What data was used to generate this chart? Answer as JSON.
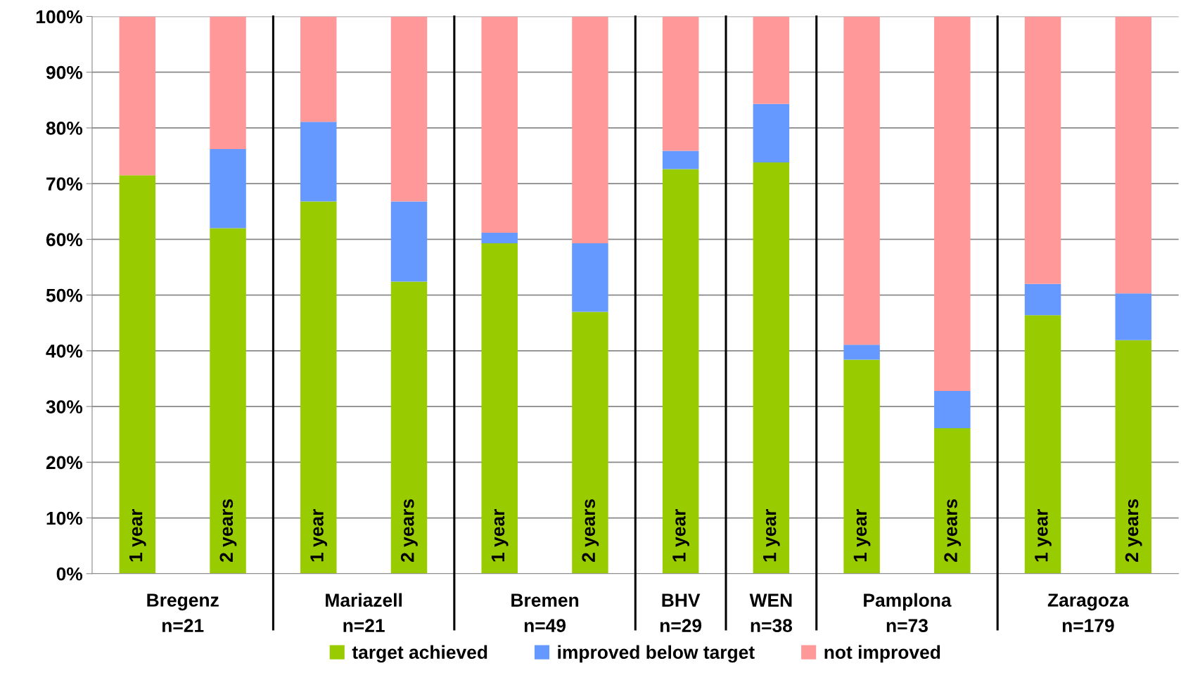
{
  "chart_data": {
    "type": "bar",
    "stacked": true,
    "categories": [
      "1 year",
      "2 years",
      "1 year",
      "2 years",
      "1 year",
      "2 years",
      "1 year",
      "1 year",
      "1 year",
      "2 years",
      "1 year",
      "2 years"
    ],
    "series": [
      {
        "name": "target achieved",
        "color": "#99cc00",
        "values": [
          71.5,
          62.0,
          66.8,
          52.4,
          59.3,
          47.0,
          72.6,
          73.8,
          38.4,
          26.1,
          46.4,
          41.9
        ]
      },
      {
        "name": "improved below target",
        "color": "#6699ff",
        "values": [
          0,
          14.2,
          14.3,
          14.4,
          1.9,
          12.3,
          3.3,
          10.5,
          2.7,
          6.7,
          5.6,
          8.4
        ]
      },
      {
        "name": "not improved",
        "color": "#ff9999",
        "values": [
          28.5,
          23.8,
          18.9,
          33.2,
          38.8,
          40.7,
          24.1,
          15.7,
          58.9,
          67.2,
          48.0,
          49.7
        ]
      }
    ],
    "annotations": [
      "Bregenz\nn=21",
      "Mariazell\nn=21",
      "Bremen\nn=49",
      "BHV\nn=29",
      "WEN\nn=38",
      "Pamplona\nn=73",
      "Zaragoza\nn=179"
    ],
    "ylim": [
      0,
      100
    ],
    "yticks": [
      {
        "value": 0,
        "label": "0%"
      },
      {
        "value": 10,
        "label": "10%"
      },
      {
        "value": 20,
        "label": "20%"
      },
      {
        "value": 30,
        "label": "30%"
      },
      {
        "value": 40,
        "label": "40%"
      },
      {
        "value": 50,
        "label": "50%"
      },
      {
        "value": 60,
        "label": "60%"
      },
      {
        "value": 70,
        "label": "70%"
      },
      {
        "value": 80,
        "label": "80%"
      },
      {
        "value": 90,
        "label": "90%"
      },
      {
        "value": 100,
        "label": "100%"
      }
    ],
    "grid": "y",
    "legend": "bottom"
  }
}
